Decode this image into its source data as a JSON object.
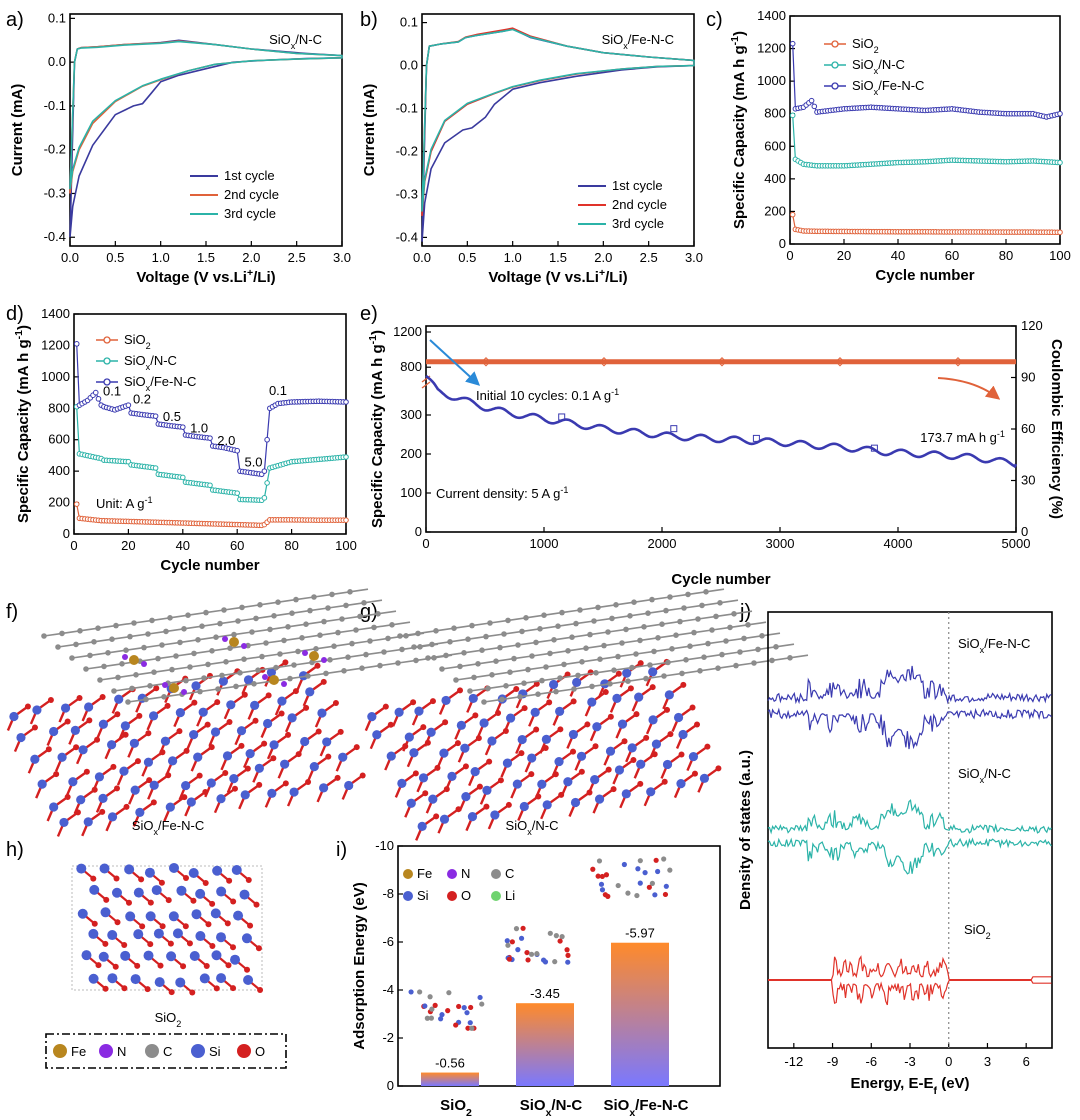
{
  "panel_labels": {
    "a": "a)",
    "b": "b)",
    "c": "c)",
    "d": "d)",
    "e": "e)",
    "f": "f)",
    "g": "g)",
    "h": "h)",
    "i": "i)",
    "j": "j)"
  },
  "chart_data": [
    {
      "id": "a",
      "type": "line",
      "annotation": "SiOx/N-C",
      "xlabel": "Voltage (V vs.Li+/Li)",
      "ylabel": "Current (mA)",
      "xlim": [
        0,
        3.0
      ],
      "ylim": [
        -0.42,
        0.11
      ],
      "xticks": [
        "0.0",
        "0.5",
        "1.0",
        "1.5",
        "2.0",
        "2.5",
        "3.0"
      ],
      "yticks": [
        "-0.4",
        "-0.3",
        "-0.2",
        "-0.1",
        "0.0",
        "0.1"
      ],
      "series": [
        {
          "name": "1st cycle",
          "color": "#3a3a9e",
          "x": [
            0.0,
            0.03,
            0.1,
            0.25,
            0.5,
            0.7,
            0.8,
            0.9,
            1.0,
            1.2,
            1.5,
            1.8,
            2.2,
            2.6,
            3.0,
            3.0,
            2.6,
            2.0,
            1.6,
            1.2,
            1.0,
            0.6,
            0.3,
            0.12,
            0.08,
            0.05,
            0.0
          ],
          "y": [
            -0.4,
            -0.33,
            -0.26,
            -0.19,
            -0.12,
            -0.1,
            -0.095,
            -0.07,
            -0.045,
            -0.03,
            -0.015,
            0.0,
            0.005,
            0.008,
            0.01,
            0.015,
            0.02,
            0.03,
            0.04,
            0.05,
            0.045,
            0.04,
            0.035,
            0.033,
            0.03,
            0.0,
            -0.4
          ]
        },
        {
          "name": "2nd cycle",
          "color": "#e0623a",
          "x": [
            0.0,
            0.03,
            0.1,
            0.25,
            0.5,
            0.8,
            1.0,
            1.3,
            1.6,
            2.0,
            2.5,
            3.0,
            3.0,
            2.5,
            2.0,
            1.6,
            1.2,
            1.0,
            0.6,
            0.3,
            0.12,
            0.08,
            0.05,
            0.0
          ],
          "y": [
            -0.3,
            -0.25,
            -0.2,
            -0.14,
            -0.09,
            -0.055,
            -0.04,
            -0.02,
            -0.005,
            0.003,
            0.007,
            0.01,
            0.015,
            0.02,
            0.03,
            0.04,
            0.048,
            0.044,
            0.04,
            0.035,
            0.033,
            0.03,
            0.0,
            -0.3
          ]
        },
        {
          "name": "3rd cycle",
          "color": "#2bb3a8",
          "x": [
            0.0,
            0.03,
            0.1,
            0.25,
            0.5,
            0.8,
            1.0,
            1.3,
            1.6,
            2.0,
            2.5,
            3.0,
            3.0,
            2.5,
            2.0,
            1.6,
            1.2,
            1.0,
            0.6,
            0.3,
            0.12,
            0.08,
            0.05,
            0.0
          ],
          "y": [
            -0.29,
            -0.245,
            -0.195,
            -0.135,
            -0.088,
            -0.054,
            -0.039,
            -0.02,
            -0.005,
            0.003,
            0.007,
            0.01,
            0.015,
            0.02,
            0.03,
            0.04,
            0.047,
            0.043,
            0.039,
            0.034,
            0.032,
            0.03,
            0.0,
            -0.29
          ]
        }
      ]
    },
    {
      "id": "b",
      "type": "line",
      "annotation": "SiOx/Fe-N-C",
      "xlabel": "Voltage (V vs.Li+/Li)",
      "ylabel": "Current (mA)",
      "xlim": [
        0,
        3.0
      ],
      "ylim": [
        -0.42,
        0.12
      ],
      "xticks": [
        "0.0",
        "0.5",
        "1.0",
        "1.5",
        "2.0",
        "2.5",
        "3.0"
      ],
      "yticks": [
        "-0.4",
        "-0.3",
        "-0.2",
        "-0.1",
        "0.0",
        "0.1"
      ],
      "series": [
        {
          "name": "1st cycle",
          "color": "#3a3a9e",
          "x": [
            0.0,
            0.03,
            0.1,
            0.25,
            0.45,
            0.55,
            0.7,
            0.8,
            1.0,
            1.3,
            1.7,
            2.2,
            2.6,
            3.0,
            3.0,
            2.5,
            2.0,
            1.6,
            1.2,
            1.0,
            0.9,
            0.6,
            0.48,
            0.4,
            0.2,
            0.08,
            0.05,
            0.0
          ],
          "y": [
            -0.41,
            -0.32,
            -0.24,
            -0.18,
            -0.15,
            -0.145,
            -0.12,
            -0.09,
            -0.055,
            -0.04,
            -0.025,
            -0.01,
            -0.003,
            0.0,
            0.012,
            0.02,
            0.03,
            0.045,
            0.065,
            0.085,
            0.08,
            0.07,
            0.065,
            0.055,
            0.05,
            0.045,
            0.0,
            -0.41
          ]
        },
        {
          "name": "2nd cycle",
          "color": "#e0332a",
          "x": [
            0.0,
            0.03,
            0.1,
            0.25,
            0.5,
            0.8,
            1.0,
            1.3,
            1.7,
            2.2,
            2.6,
            3.0,
            3.0,
            2.5,
            2.0,
            1.6,
            1.2,
            1.0,
            0.9,
            0.6,
            0.48,
            0.4,
            0.2,
            0.08,
            0.05,
            0.0
          ],
          "y": [
            -0.35,
            -0.27,
            -0.2,
            -0.13,
            -0.09,
            -0.065,
            -0.05,
            -0.035,
            -0.02,
            -0.008,
            -0.002,
            0.0,
            0.012,
            0.02,
            0.03,
            0.045,
            0.068,
            0.087,
            0.083,
            0.072,
            0.066,
            0.056,
            0.05,
            0.045,
            0.0,
            -0.35
          ]
        },
        {
          "name": "3rd cycle",
          "color": "#2bb3a8",
          "x": [
            0.0,
            0.03,
            0.1,
            0.25,
            0.5,
            0.8,
            1.0,
            1.3,
            1.7,
            2.2,
            2.6,
            3.0,
            3.0,
            2.5,
            2.0,
            1.6,
            1.2,
            1.0,
            0.9,
            0.6,
            0.48,
            0.4,
            0.2,
            0.08,
            0.05,
            0.0
          ],
          "y": [
            -0.34,
            -0.265,
            -0.195,
            -0.128,
            -0.088,
            -0.064,
            -0.049,
            -0.034,
            -0.019,
            -0.008,
            -0.002,
            0.0,
            0.012,
            0.02,
            0.03,
            0.045,
            0.066,
            0.084,
            0.08,
            0.07,
            0.065,
            0.055,
            0.05,
            0.045,
            0.0,
            -0.34
          ]
        }
      ]
    },
    {
      "id": "c",
      "type": "scatter",
      "xlabel": "Cycle number",
      "ylabel": "Specific Capacity (mA h g-1)",
      "xlim": [
        0,
        100
      ],
      "ylim": [
        0,
        1400
      ],
      "xticks": [
        "0",
        "20",
        "40",
        "60",
        "80",
        "100"
      ],
      "yticks": [
        "0",
        "200",
        "400",
        "600",
        "800",
        "1000",
        "1200",
        "1400"
      ],
      "series": [
        {
          "name": "SiO2",
          "color": "#e0623a",
          "x": [
            1,
            2,
            5,
            10,
            20,
            30,
            40,
            50,
            60,
            70,
            80,
            90,
            100
          ],
          "y": [
            180,
            90,
            80,
            78,
            77,
            76,
            75,
            75,
            74,
            74,
            73,
            73,
            72
          ]
        },
        {
          "name": "SiOx/N-C",
          "color": "#2bb3a8",
          "x": [
            1,
            2,
            5,
            10,
            20,
            30,
            40,
            50,
            60,
            70,
            80,
            90,
            100
          ],
          "y": [
            790,
            520,
            490,
            480,
            480,
            490,
            500,
            505,
            515,
            510,
            505,
            510,
            500
          ]
        },
        {
          "name": "SiOx/Fe-N-C",
          "color": "#3a3ab0",
          "x": [
            1,
            2,
            5,
            8,
            10,
            20,
            30,
            40,
            50,
            60,
            70,
            80,
            90,
            95,
            100
          ],
          "y": [
            1230,
            830,
            840,
            880,
            810,
            830,
            840,
            830,
            820,
            830,
            810,
            800,
            800,
            780,
            800
          ]
        }
      ]
    },
    {
      "id": "d",
      "type": "scatter",
      "xlabel": "Cycle number",
      "ylabel": "Specific Capacity (mA h g-1)",
      "xlim": [
        0,
        100
      ],
      "ylim": [
        0,
        1400
      ],
      "xticks": [
        "0",
        "20",
        "40",
        "60",
        "80",
        "100"
      ],
      "yticks": [
        "0",
        "200",
        "400",
        "600",
        "800",
        "1000",
        "1200",
        "1400"
      ],
      "unit_label": "Unit: A g-1",
      "rate_labels": [
        {
          "text": "0.1",
          "x": 14,
          "y": 880
        },
        {
          "text": "0.2",
          "x": 25,
          "y": 830
        },
        {
          "text": "0.5",
          "x": 36,
          "y": 720
        },
        {
          "text": "1.0",
          "x": 46,
          "y": 645
        },
        {
          "text": "2.0",
          "x": 56,
          "y": 565
        },
        {
          "text": "5.0",
          "x": 66,
          "y": 430
        },
        {
          "text": "0.1",
          "x": 75,
          "y": 885
        }
      ],
      "series": [
        {
          "name": "SiO2",
          "color": "#e0623a",
          "x": [
            1,
            2,
            10,
            20,
            30,
            40,
            50,
            60,
            69,
            70,
            72,
            80,
            90,
            100
          ],
          "y": [
            190,
            100,
            85,
            80,
            75,
            70,
            65,
            60,
            55,
            60,
            90,
            90,
            88,
            88
          ]
        },
        {
          "name": "SiOx/N-C",
          "color": "#2bb3a8",
          "x": [
            1,
            2,
            10,
            11,
            20,
            21,
            30,
            31,
            40,
            41,
            50,
            51,
            60,
            61,
            69,
            70,
            72,
            80,
            90,
            100
          ],
          "y": [
            810,
            510,
            480,
            470,
            460,
            440,
            420,
            380,
            360,
            330,
            310,
            280,
            260,
            220,
            215,
            230,
            420,
            460,
            475,
            490
          ]
        },
        {
          "name": "SiOx/Fe-N-C",
          "color": "#3a3ab0",
          "x": [
            1,
            2,
            5,
            8,
            10,
            11,
            15,
            20,
            21,
            25,
            30,
            31,
            35,
            40,
            41,
            45,
            50,
            51,
            55,
            60,
            61,
            65,
            69,
            70,
            72,
            75,
            80,
            90,
            100
          ],
          "y": [
            1210,
            820,
            850,
            900,
            820,
            810,
            790,
            820,
            770,
            760,
            750,
            700,
            690,
            680,
            630,
            620,
            610,
            560,
            550,
            530,
            400,
            390,
            380,
            400,
            800,
            830,
            840,
            845,
            840
          ]
        }
      ]
    },
    {
      "id": "e",
      "type": "scatter",
      "xlabel": "Cycle number",
      "ylabel": "Specific Capacity (mA h g-1)",
      "y2label": "Coulombic Efficiency (%)",
      "xlim": [
        0,
        5000
      ],
      "xticks": [
        "0",
        "1000",
        "2000",
        "3000",
        "4000",
        "5000"
      ],
      "yticks_lower": [
        "0",
        "100",
        "200",
        "300"
      ],
      "yticks_upper": [
        "800",
        "1200"
      ],
      "y2ticks": [
        "0",
        "30",
        "60",
        "90",
        "120"
      ],
      "annotation_initial": "Initial 10 cycles: 0.1 A g-1",
      "annotation_final": "173.7 mA h g-1",
      "annotation_current": "Current density: 5 A g-1",
      "series": [
        {
          "name": "Specific capacity",
          "color": "#3a3ab0",
          "x": [
            0,
            100,
            300,
            500,
            700,
            900,
            1100,
            1300,
            1500,
            1800,
            2100,
            2400,
            2700,
            3000,
            3300,
            3600,
            3900,
            4200,
            4500,
            4800,
            5000
          ],
          "y": [
            400,
            360,
            340,
            320,
            305,
            295,
            285,
            275,
            265,
            255,
            245,
            240,
            235,
            230,
            222,
            215,
            205,
            200,
            195,
            185,
            174
          ]
        },
        {
          "name": "Coulombic efficiency",
          "color": "#e0623a",
          "x": [
            0,
            20,
            50,
            100,
            500,
            1000,
            1500,
            2000,
            2500,
            3000,
            3500,
            4000,
            4500,
            5000
          ],
          "y": [
            60,
            95,
            99,
            99.5,
            99.6,
            99.6,
            99.6,
            99.6,
            99.6,
            99.6,
            99.6,
            99.6,
            99.6,
            99.6
          ]
        }
      ]
    },
    {
      "id": "i",
      "type": "bar",
      "ylabel": "Adsorption Energy (eV)",
      "ylim": [
        0,
        -10
      ],
      "yticks": [
        "0",
        "-2",
        "-4",
        "-6",
        "-8",
        "-10"
      ],
      "categories": [
        "SiO2",
        "SiOx/N-C",
        "SiOx/Fe-N-C"
      ],
      "category_colors": [
        "#e0332a",
        "#2bb3a8",
        "#3a3ab0"
      ],
      "values": [
        -0.56,
        -3.45,
        -5.97
      ],
      "value_labels": [
        "-0.56",
        "-3.45",
        "-5.97"
      ]
    },
    {
      "id": "j",
      "type": "line",
      "xlabel": "Energy, E-Ef (eV)",
      "ylabel": "Density of states (a.u.)",
      "xlim": [
        -14,
        8
      ],
      "xticks": [
        "-12",
        "-9",
        "-6",
        "-3",
        "0",
        "3",
        "6"
      ],
      "series_names": [
        "SiOx/Fe-N-C",
        "SiOx/N-C",
        "SiO2"
      ],
      "series_colors": [
        "#3a3ab0",
        "#2bb3a8",
        "#e0332a"
      ]
    }
  ],
  "structures": {
    "f_caption": "SiOx/Fe-N-C",
    "g_caption": "SiOx/N-C",
    "h_caption": "SiO2",
    "legend_h": [
      {
        "label": "Fe",
        "color": "#b8861f"
      },
      {
        "label": "N",
        "color": "#8a2be2"
      },
      {
        "label": "C",
        "color": "#8c8c8c"
      },
      {
        "label": "Si",
        "color": "#4a5fd0"
      },
      {
        "label": "O",
        "color": "#d42020"
      }
    ],
    "legend_i": [
      {
        "label": "Fe",
        "color": "#b8861f"
      },
      {
        "label": "N",
        "color": "#8a2be2"
      },
      {
        "label": "C",
        "color": "#8c8c8c"
      },
      {
        "label": "Si",
        "color": "#4a5fd0"
      },
      {
        "label": "O",
        "color": "#d42020"
      },
      {
        "label": "Li",
        "color": "#6fd36f"
      }
    ]
  }
}
